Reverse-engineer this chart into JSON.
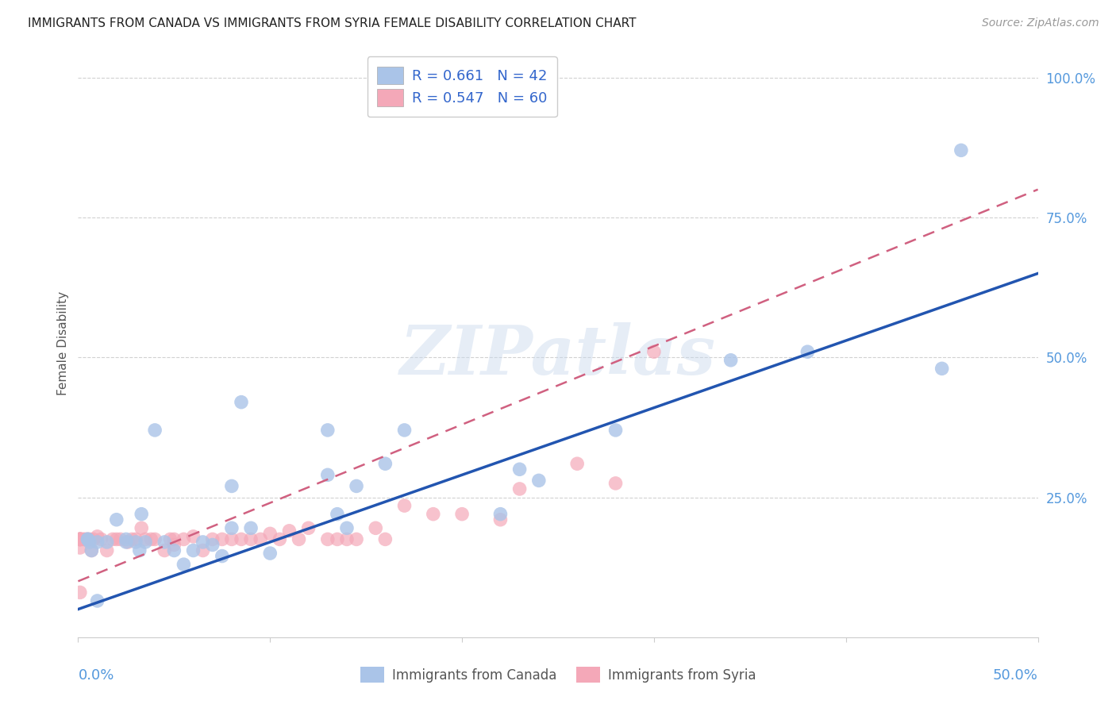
{
  "title": "IMMIGRANTS FROM CANADA VS IMMIGRANTS FROM SYRIA FEMALE DISABILITY CORRELATION CHART",
  "source": "Source: ZipAtlas.com",
  "ylabel": "Female Disability",
  "canada_color": "#aac4e8",
  "canada_line_color": "#2255b0",
  "syria_color": "#f4a8b8",
  "syria_line_color": "#d06080",
  "canada_R": 0.661,
  "canada_N": 42,
  "syria_R": 0.547,
  "syria_N": 60,
  "legend_label_canada": "Immigrants from Canada",
  "legend_label_syria": "Immigrants from Syria",
  "xlim": [
    0.0,
    0.5
  ],
  "ylim": [
    0.0,
    1.05
  ],
  "canada_x": [
    0.005,
    0.005,
    0.006,
    0.007,
    0.01,
    0.01,
    0.015,
    0.02,
    0.025,
    0.025,
    0.03,
    0.032,
    0.033,
    0.035,
    0.04,
    0.045,
    0.05,
    0.055,
    0.06,
    0.065,
    0.07,
    0.075,
    0.08,
    0.08,
    0.085,
    0.09,
    0.1,
    0.13,
    0.13,
    0.135,
    0.14,
    0.145,
    0.16,
    0.17,
    0.22,
    0.23,
    0.24,
    0.28,
    0.34,
    0.38,
    0.45,
    0.46
  ],
  "canada_y": [
    0.175,
    0.175,
    0.17,
    0.155,
    0.065,
    0.17,
    0.17,
    0.21,
    0.175,
    0.17,
    0.17,
    0.155,
    0.22,
    0.17,
    0.37,
    0.17,
    0.155,
    0.13,
    0.155,
    0.17,
    0.165,
    0.145,
    0.27,
    0.195,
    0.42,
    0.195,
    0.15,
    0.37,
    0.29,
    0.22,
    0.195,
    0.27,
    0.31,
    0.37,
    0.22,
    0.3,
    0.28,
    0.37,
    0.495,
    0.51,
    0.48,
    0.87
  ],
  "syria_x": [
    0.001,
    0.001,
    0.001,
    0.001,
    0.001,
    0.001,
    0.001,
    0.001,
    0.002,
    0.003,
    0.004,
    0.005,
    0.006,
    0.007,
    0.008,
    0.01,
    0.012,
    0.015,
    0.018,
    0.02,
    0.022,
    0.026,
    0.028,
    0.03,
    0.033,
    0.035,
    0.038,
    0.04,
    0.045,
    0.048,
    0.05,
    0.05,
    0.055,
    0.06,
    0.065,
    0.07,
    0.075,
    0.08,
    0.085,
    0.09,
    0.095,
    0.1,
    0.105,
    0.11,
    0.115,
    0.12,
    0.13,
    0.135,
    0.14,
    0.145,
    0.155,
    0.16,
    0.17,
    0.185,
    0.2,
    0.22,
    0.23,
    0.26,
    0.28,
    0.3
  ],
  "syria_y": [
    0.175,
    0.175,
    0.175,
    0.175,
    0.16,
    0.175,
    0.175,
    0.08,
    0.175,
    0.175,
    0.175,
    0.175,
    0.175,
    0.155,
    0.175,
    0.18,
    0.175,
    0.155,
    0.175,
    0.175,
    0.175,
    0.17,
    0.175,
    0.175,
    0.195,
    0.175,
    0.175,
    0.175,
    0.155,
    0.175,
    0.165,
    0.175,
    0.175,
    0.18,
    0.155,
    0.175,
    0.175,
    0.175,
    0.175,
    0.175,
    0.175,
    0.185,
    0.175,
    0.19,
    0.175,
    0.195,
    0.175,
    0.175,
    0.175,
    0.175,
    0.195,
    0.175,
    0.235,
    0.22,
    0.22,
    0.21,
    0.265,
    0.31,
    0.275,
    0.51
  ],
  "canada_line_x0": 0.0,
  "canada_line_y0": 0.05,
  "canada_line_x1": 0.5,
  "canada_line_y1": 0.65,
  "syria_line_x0": 0.0,
  "syria_line_y0": 0.1,
  "syria_line_x1": 0.5,
  "syria_line_y1": 0.8,
  "watermark_text": "ZIPatlas",
  "background_color": "#ffffff",
  "grid_color": "#cccccc"
}
